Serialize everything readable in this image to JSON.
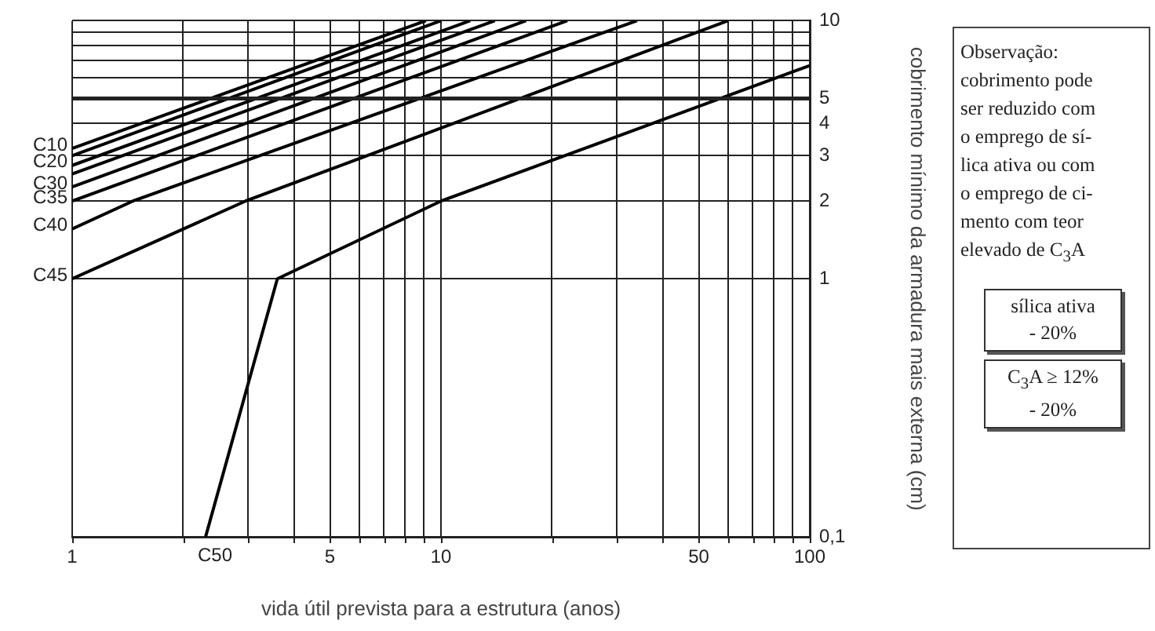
{
  "chart_data": {
    "type": "line",
    "xlabel": "vida útil prevista para a estrutura (anos)",
    "ylabel": "cobrimento mínimo da armadura mais externa (cm)",
    "log": "xy",
    "grid": true,
    "legend": false,
    "marker": "none",
    "line_style": "solid",
    "xlim": [
      1,
      100
    ],
    "ylim": [
      0.1,
      10
    ],
    "ref_lines": [
      {
        "axis": "y",
        "value": 5,
        "color": "#222222"
      }
    ],
    "xticks": [
      1,
      {
        "value": 2,
        "label": null
      },
      {
        "value": 3,
        "label": null
      },
      {
        "value": 4,
        "label": null
      },
      5,
      {
        "value": 6,
        "label": null
      },
      {
        "value": 7,
        "label": null
      },
      {
        "value": 8,
        "label": null
      },
      {
        "value": 9,
        "label": null
      },
      10,
      {
        "value": 20,
        "label": null
      },
      {
        "value": 30,
        "label": null
      },
      {
        "value": 40,
        "label": null
      },
      50,
      {
        "value": 60,
        "label": null
      },
      {
        "value": 70,
        "label": null
      },
      {
        "value": 80,
        "label": null
      },
      {
        "value": 90,
        "label": null
      },
      100
    ],
    "yticks": [
      {
        "value": 0.1,
        "label": "0,1"
      },
      1,
      2,
      3,
      4,
      5,
      {
        "value": 6,
        "label": null
      },
      {
        "value": 7,
        "label": null
      },
      {
        "value": 8,
        "label": null
      },
      {
        "value": 9,
        "label": null
      },
      10
    ],
    "series": [
      {
        "name": "C10",
        "color": "#000000",
        "x": [
          1,
          9.1
        ],
        "values": [
          3.2,
          10
        ]
      },
      {
        "color": "#000000",
        "x": [
          1,
          10
        ],
        "values": [
          3,
          10
        ]
      },
      {
        "name": "C20",
        "color": "#000000",
        "x": [
          1,
          12
        ],
        "values": [
          2.75,
          10
        ]
      },
      {
        "color": "#000000",
        "x": [
          1,
          14
        ],
        "values": [
          2.55,
          10
        ]
      },
      {
        "name": "C30",
        "color": "#000000",
        "x": [
          1,
          17
        ],
        "values": [
          2.27,
          10
        ]
      },
      {
        "name": "C35",
        "color": "#000000",
        "x": [
          1,
          22
        ],
        "values": [
          2,
          10
        ]
      },
      {
        "name": "C40",
        "color": "#000000",
        "x": [
          1,
          1.46,
          34
        ],
        "values": [
          1.56,
          2,
          10
        ]
      },
      {
        "name": "C45",
        "color": "#000000",
        "x": [
          1,
          2.95,
          60
        ],
        "values": [
          1,
          2,
          10
        ]
      },
      {
        "name": "C50",
        "color": "#000000",
        "x": [
          2.3,
          3.6,
          10,
          100
        ],
        "values": [
          0.1,
          1,
          2,
          6.7
        ]
      }
    ],
    "annotations": [
      "Observação:\ncobrimento pode\nser reduzido com\no emprego de sí-\nlica ativa ou com\no emprego de ci-\nmento com teor\nelevado de C$_{3}$A",
      "sílica ativa\n- 20%",
      "C$_{3}$A ≥ 12%\n- 20%"
    ]
  }
}
